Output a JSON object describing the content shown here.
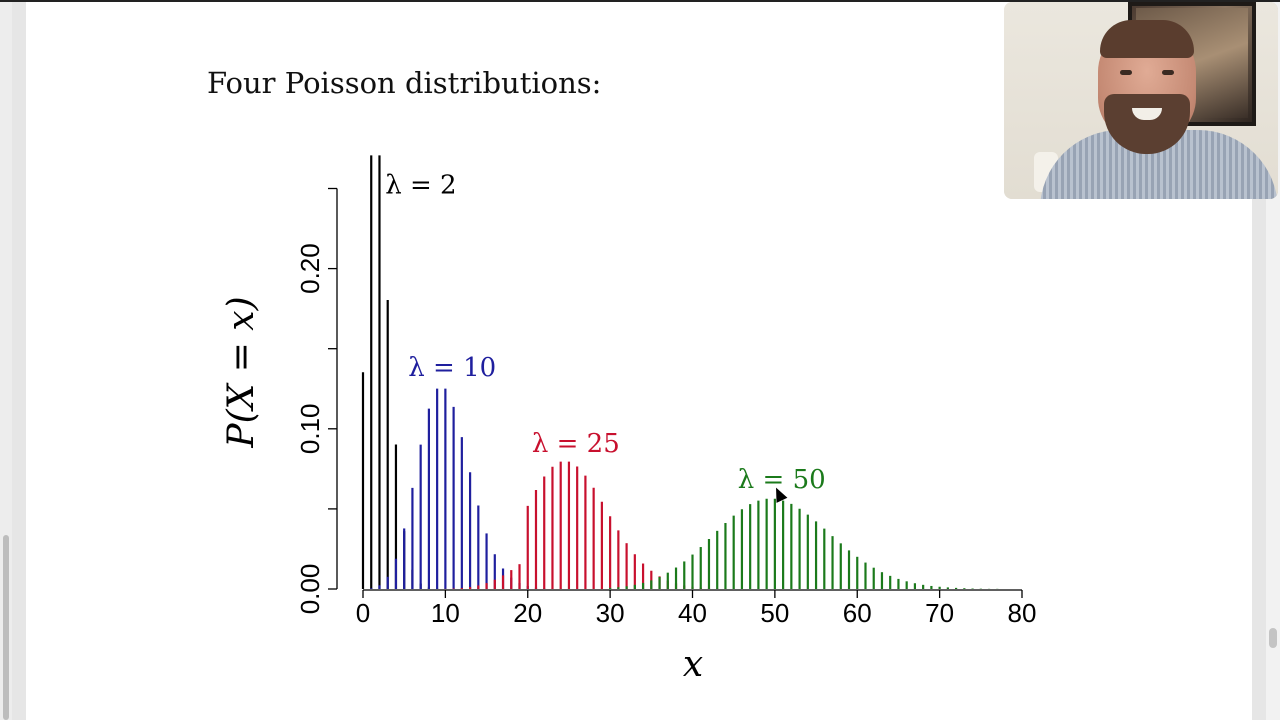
{
  "slide": {
    "title": "Four Poisson distributions:"
  },
  "chart_data": {
    "type": "bar",
    "title": "Four Poisson distributions:",
    "xlabel": "x",
    "ylabel": "P(X = x)",
    "xlim": [
      0,
      80
    ],
    "ylim": [
      0,
      0.25
    ],
    "x_ticks": [
      0,
      10,
      20,
      30,
      40,
      50,
      60,
      70,
      80
    ],
    "x_tick_labels": [
      "0",
      "10",
      "20",
      "30",
      "40",
      "50",
      "60",
      "70",
      "80"
    ],
    "y_ticks": [
      0.0,
      0.1,
      0.2
    ],
    "y_tick_labels": [
      "0.00",
      "0.10",
      "0.20"
    ],
    "grid": false,
    "legend": "none (inline labels)",
    "series": [
      {
        "label": "λ = 2",
        "lambda": 2,
        "color": "#000000",
        "x": [
          0,
          1,
          2,
          3,
          4,
          5,
          6,
          7,
          8,
          9,
          10
        ],
        "values": [
          0.1353,
          0.2707,
          0.2707,
          0.1804,
          0.0902,
          0.0361,
          0.012,
          0.0034,
          0.0009,
          0.0002,
          0.0
        ]
      },
      {
        "label": "λ = 10",
        "lambda": 10,
        "color": "#1f1f9e",
        "x": [
          0,
          1,
          2,
          3,
          4,
          5,
          6,
          7,
          8,
          9,
          10,
          11,
          12,
          13,
          14,
          15,
          16,
          17,
          18,
          19,
          20,
          21,
          22,
          23,
          24,
          25
        ],
        "values": [
          0.0,
          0.0005,
          0.0023,
          0.0076,
          0.0189,
          0.0378,
          0.0631,
          0.0901,
          0.1126,
          0.1251,
          0.1251,
          0.1137,
          0.0948,
          0.0729,
          0.0521,
          0.0347,
          0.0217,
          0.0128,
          0.0071,
          0.0037,
          0.0019,
          0.0009,
          0.0004,
          0.0002,
          0.0001,
          0.0
        ]
      },
      {
        "label": "λ = 25",
        "lambda": 25,
        "color": "#c8102e",
        "x": [
          10,
          11,
          12,
          13,
          14,
          15,
          16,
          17,
          18,
          19,
          20,
          21,
          22,
          23,
          24,
          25,
          26,
          27,
          28,
          29,
          30,
          31,
          32,
          33,
          34,
          35,
          36,
          37,
          38,
          39,
          40,
          41,
          42,
          43,
          44,
          45
        ],
        "values": [
          0.0001,
          0.0003,
          0.0006,
          0.0012,
          0.0022,
          0.0037,
          0.0058,
          0.0085,
          0.0118,
          0.0155,
          0.0519,
          0.0618,
          0.0702,
          0.0763,
          0.0795,
          0.0795,
          0.0765,
          0.0708,
          0.0632,
          0.0545,
          0.0454,
          0.0366,
          0.0286,
          0.0217,
          0.0159,
          0.0114,
          0.0079,
          0.0053,
          0.0035,
          0.0022,
          0.0014,
          0.0008,
          0.0005,
          0.0003,
          0.0002,
          0.0001
        ]
      },
      {
        "label": "λ = 50",
        "lambda": 50,
        "color": "#1b7a1b",
        "x": [
          30,
          31,
          32,
          33,
          34,
          35,
          36,
          37,
          38,
          39,
          40,
          41,
          42,
          43,
          44,
          45,
          46,
          47,
          48,
          49,
          50,
          51,
          52,
          53,
          54,
          55,
          56,
          57,
          58,
          59,
          60,
          61,
          62,
          63,
          64,
          65,
          66,
          67,
          68,
          69,
          70,
          71,
          72,
          73,
          74,
          75,
          76,
          77,
          78,
          79,
          80
        ],
        "values": [
          0.0007,
          0.0011,
          0.0017,
          0.0026,
          0.0038,
          0.0054,
          0.0075,
          0.0102,
          0.0134,
          0.0172,
          0.0215,
          0.0262,
          0.0312,
          0.0363,
          0.0412,
          0.0458,
          0.0498,
          0.053,
          0.0552,
          0.0563,
          0.0563,
          0.0552,
          0.0531,
          0.0501,
          0.0464,
          0.0422,
          0.0377,
          0.033,
          0.0285,
          0.0241,
          0.0201,
          0.0165,
          0.0133,
          0.0105,
          0.0082,
          0.0063,
          0.0048,
          0.0036,
          0.0026,
          0.0019,
          0.0014,
          0.001,
          0.0007,
          0.0005,
          0.0003,
          0.0002,
          0.0001,
          0.0001,
          0.0,
          0.0,
          0.0
        ]
      }
    ],
    "annotations": [
      {
        "text": "λ = 2",
        "x": 2.7,
        "y": 0.247,
        "color": "#000000"
      },
      {
        "text": "λ = 10",
        "x": 5.5,
        "y": 0.133,
        "color": "#1f1f9e"
      },
      {
        "text": "λ = 25",
        "x": 20.5,
        "y": 0.0855,
        "color": "#c8102e"
      },
      {
        "text": "λ = 50",
        "x": 45.5,
        "y": 0.063,
        "color": "#1b7a1b"
      }
    ]
  }
}
